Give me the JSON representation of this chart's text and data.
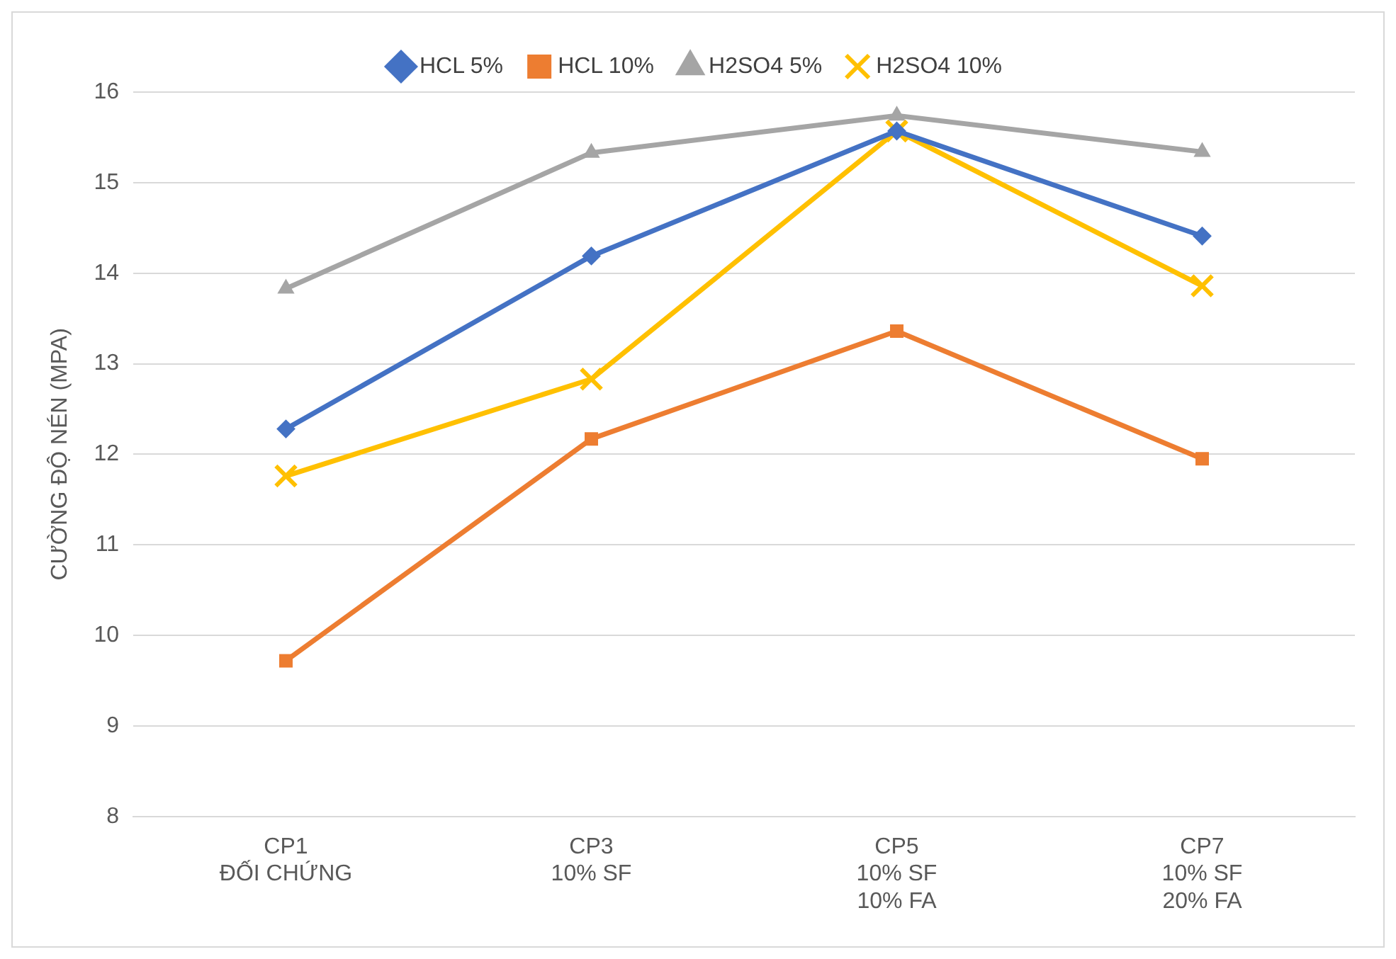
{
  "chart_data": {
    "type": "line",
    "ylabel": "CƯỜNG ĐỘ NÉN (MPA)",
    "categories": [
      "CP1\nĐỐI CHỨNG",
      "CP3\n10% SF",
      "CP5\n10% SF\n10% FA",
      "CP7\n10% SF\n20% FA"
    ],
    "ylim": [
      8,
      16
    ],
    "yticks": [
      8,
      9,
      10,
      11,
      12,
      13,
      14,
      15,
      16
    ],
    "grid": "y",
    "legend": "top",
    "series": [
      {
        "name": "HCL 5%",
        "color": "#4472c4",
        "marker": "diamond",
        "values": [
          12.28,
          14.19,
          15.57,
          14.41
        ]
      },
      {
        "name": "HCL 10%",
        "color": "#ed7d31",
        "marker": "square",
        "values": [
          9.72,
          12.17,
          13.36,
          11.95
        ]
      },
      {
        "name": "H2SO4 5%",
        "color": "#a5a5a5",
        "marker": "triangle",
        "values": [
          13.83,
          15.33,
          15.74,
          15.34
        ]
      },
      {
        "name": "H2SO4 10%",
        "color": "#ffc000",
        "marker": "cross",
        "values": [
          11.76,
          12.83,
          15.57,
          13.86
        ]
      }
    ]
  }
}
